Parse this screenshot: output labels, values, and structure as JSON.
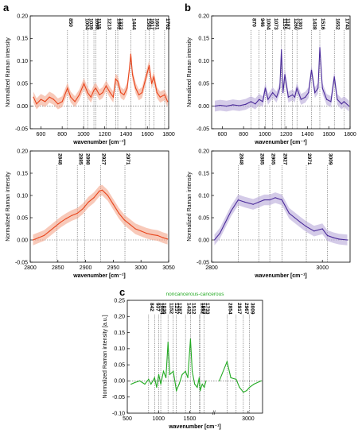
{
  "panel_letters": [
    "a",
    "b",
    "c"
  ],
  "chart_data": [
    {
      "id": "a-top",
      "type": "line",
      "xlabel": "wavenumber [cm⁻¹]",
      "ylabel": "Normalized Raman intensity",
      "xlim": [
        500,
        1800
      ],
      "ylim": [
        -0.05,
        0.2
      ],
      "x_ticks": [
        "600",
        "800",
        "1000",
        "1200",
        "1400",
        "1600",
        "1800"
      ],
      "y_ticks": [
        "-0.05",
        "0.00",
        "0.05",
        "0.10",
        "0.15",
        "0.20"
      ],
      "peaks": [
        "850",
        "1004",
        "1039",
        "1098",
        "1115",
        "1213",
        "1302",
        "1322",
        "1444",
        "1583",
        "1617",
        "1661",
        "1762"
      ],
      "line_color": "#e8451c",
      "band_color": "#f4a58a",
      "series": [
        {
          "x": [
            530,
            560,
            600,
            640,
            680,
            720,
            760,
            800,
            850,
            880,
            920,
            960,
            1004,
            1039,
            1070,
            1098,
            1115,
            1150,
            1180,
            1213,
            1250,
            1280,
            1302,
            1322,
            1350,
            1380,
            1410,
            1430,
            1444,
            1460,
            1490,
            1520,
            1550,
            1583,
            1600,
            1617,
            1640,
            1661,
            1690,
            1720,
            1762,
            1790
          ],
          "y": [
            0.02,
            0.005,
            0.015,
            0.01,
            0.02,
            0.015,
            0.005,
            0.01,
            0.04,
            0.02,
            0.01,
            0.025,
            0.05,
            0.03,
            0.02,
            0.035,
            0.04,
            0.025,
            0.03,
            0.045,
            0.03,
            0.02,
            0.06,
            0.055,
            0.03,
            0.025,
            0.04,
            0.08,
            0.115,
            0.07,
            0.04,
            0.025,
            0.03,
            0.06,
            0.075,
            0.09,
            0.05,
            0.065,
            0.03,
            0.02,
            0.025,
            0.01
          ]
        }
      ]
    },
    {
      "id": "b-top",
      "type": "line",
      "xlabel": "wavenumber [cm⁻¹]",
      "ylabel": "Normalized Raman intensity",
      "xlim": [
        500,
        1800
      ],
      "ylim": [
        -0.05,
        0.2
      ],
      "x_ticks": [
        "600",
        "800",
        "1000",
        "1200",
        "1400",
        "1600",
        "1800"
      ],
      "y_ticks": [
        "-0.05",
        "0.00",
        "0.05",
        "0.10",
        "0.15",
        "0.20"
      ],
      "peaks": [
        "870",
        "946",
        "1004",
        "1073",
        "1155",
        "1187",
        "1260",
        "1301",
        "1438",
        "1516",
        "1652",
        "1743"
      ],
      "line_color": "#4a2a9a",
      "band_color": "#b7a8d8",
      "series": [
        {
          "x": [
            530,
            580,
            640,
            700,
            760,
            820,
            870,
            910,
            946,
            980,
            1004,
            1030,
            1073,
            1110,
            1140,
            1155,
            1170,
            1187,
            1220,
            1260,
            1280,
            1301,
            1340,
            1380,
            1410,
            1438,
            1470,
            1500,
            1516,
            1540,
            1580,
            1620,
            1652,
            1680,
            1720,
            1743,
            1790
          ],
          "y": [
            0.0,
            0.002,
            0.0,
            0.003,
            0.001,
            0.004,
            0.01,
            0.005,
            0.015,
            0.01,
            0.04,
            0.015,
            0.03,
            0.02,
            0.04,
            0.125,
            0.03,
            0.07,
            0.02,
            0.025,
            0.02,
            0.04,
            0.015,
            0.02,
            0.03,
            0.08,
            0.03,
            0.04,
            0.13,
            0.04,
            0.015,
            0.01,
            0.065,
            0.015,
            0.005,
            0.01,
            0.0
          ]
        }
      ]
    },
    {
      "id": "a-bottom",
      "type": "line",
      "xlabel": "wavenumber [cm⁻¹]",
      "ylabel": "Normalized Raman intensity",
      "xlim": [
        2800,
        3050
      ],
      "ylim": [
        -0.05,
        0.2
      ],
      "x_ticks": [
        "2800",
        "2850",
        "2900",
        "2950",
        "3000",
        "3050"
      ],
      "y_ticks": [
        "-0.05",
        "0.00",
        "0.05",
        "0.10",
        "0.15",
        "0.20"
      ],
      "peaks": [
        "2848",
        "2885",
        "2898",
        "2927",
        "2971"
      ],
      "line_color": "#e8451c",
      "band_color": "#f4a58a",
      "series": [
        {
          "x": [
            2805,
            2815,
            2825,
            2835,
            2845,
            2855,
            2865,
            2875,
            2885,
            2895,
            2905,
            2915,
            2925,
            2930,
            2940,
            2950,
            2960,
            2970,
            2980,
            2990,
            3000,
            3010,
            3020,
            3030,
            3040,
            3048
          ],
          "y": [
            0.0,
            0.005,
            0.01,
            0.02,
            0.03,
            0.04,
            0.048,
            0.055,
            0.06,
            0.07,
            0.085,
            0.095,
            0.11,
            0.112,
            0.1,
            0.08,
            0.06,
            0.045,
            0.035,
            0.025,
            0.02,
            0.015,
            0.012,
            0.01,
            0.005,
            0.002
          ]
        }
      ]
    },
    {
      "id": "b-bottom",
      "type": "line",
      "xlabel": "wavenumber [cm⁻¹]",
      "ylabel": "Normalized Raman intensity",
      "xlim": [
        2800,
        3050
      ],
      "ylim": [
        -0.05,
        0.2
      ],
      "x_ticks": [
        "2800",
        "3000"
      ],
      "y_ticks": [
        "-0.05",
        "0.00",
        "0.05",
        "0.10",
        "0.15",
        "0.20"
      ],
      "peaks": [
        "2848",
        "2885",
        "2905",
        "2927",
        "2971",
        "3009"
      ],
      "line_color": "#4a2a9a",
      "band_color": "#b7a8d8",
      "series": [
        {
          "x": [
            2805,
            2815,
            2825,
            2835,
            2848,
            2860,
            2875,
            2885,
            2895,
            2905,
            2915,
            2927,
            2940,
            2950,
            2960,
            2971,
            2985,
            3000,
            3009,
            3020,
            3030,
            3045
          ],
          "y": [
            0.0,
            0.015,
            0.04,
            0.065,
            0.09,
            0.085,
            0.08,
            0.085,
            0.09,
            0.09,
            0.095,
            0.09,
            0.06,
            0.05,
            0.04,
            0.03,
            0.02,
            0.025,
            0.01,
            0.005,
            0.002,
            0.0
          ]
        }
      ]
    },
    {
      "id": "c",
      "type": "line",
      "title": "noncancerous-cancerous",
      "xlabel": "wavenumber [cm⁻¹]",
      "ylabel": "Normalized Raman intensity [a.u.]",
      "xlim": [
        500,
        3100
      ],
      "ylim": [
        -0.1,
        0.25
      ],
      "x_ticks": [
        "500",
        "1000",
        "1500",
        "3000"
      ],
      "y_ticks": [
        "-0.10",
        "-0.05",
        "0.00",
        "0.05",
        "0.10",
        "0.15",
        "0.20",
        "0.25"
      ],
      "peaks": [
        "842",
        "937",
        "1004",
        "1036",
        "1152",
        "1237",
        "1287",
        "1432",
        "1512",
        "1652",
        "1667",
        "1733",
        "2854",
        "2917",
        "2967",
        "3009"
      ],
      "line_color": "#22aa22",
      "series": [
        {
          "x": [
            560,
            620,
            700,
            780,
            842,
            880,
            937,
            970,
            1004,
            1036,
            1080,
            1120,
            1152,
            1180,
            1237,
            1287,
            1330,
            1380,
            1432,
            1470,
            1512,
            1540,
            1580,
            1620,
            1652,
            1667,
            1700,
            1733,
            1760,
            2800,
            2854,
            2880,
            2917,
            2940,
            2967,
            2990,
            3009,
            3040,
            3090
          ],
          "y": [
            -0.01,
            -0.005,
            0.0,
            -0.01,
            0.005,
            -0.01,
            0.01,
            -0.02,
            0.02,
            -0.01,
            0.03,
            0.01,
            0.12,
            0.02,
            0.03,
            -0.03,
            -0.01,
            0.02,
            0.03,
            0.01,
            0.13,
            0.03,
            -0.01,
            -0.02,
            0.01,
            -0.03,
            -0.01,
            -0.02,
            0.0,
            0.0,
            0.06,
            0.01,
            0.005,
            -0.02,
            -0.035,
            -0.03,
            -0.02,
            -0.01,
            0.0
          ]
        }
      ]
    }
  ]
}
